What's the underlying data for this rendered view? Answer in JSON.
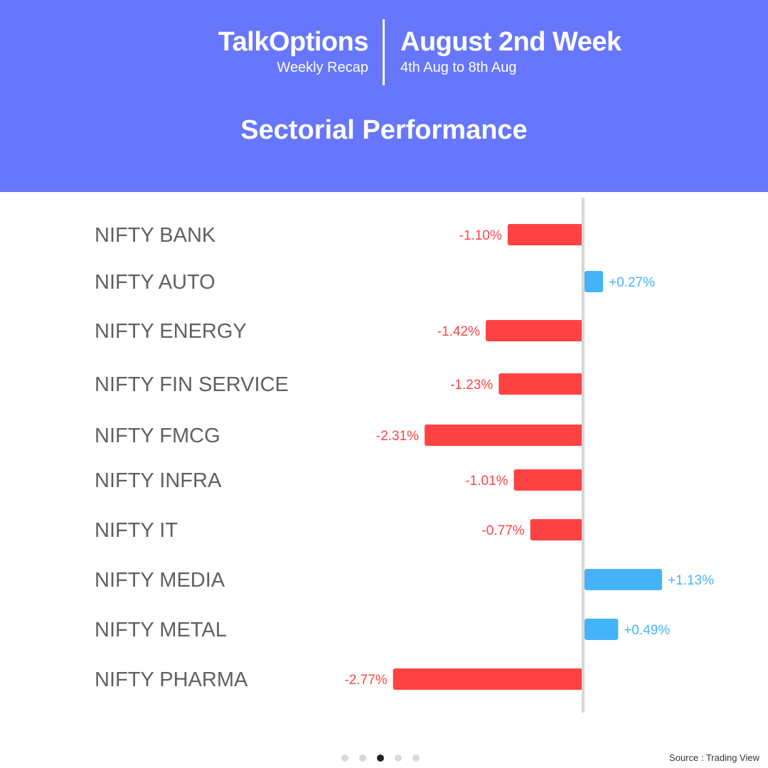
{
  "header": {
    "brand_name": "TalkOptions",
    "brand_sub": "Weekly Recap",
    "week_title": "August 2nd Week",
    "week_range": "4th Aug to 8th Aug",
    "section_title": "Sectorial Performance",
    "background_color": "#6677fb"
  },
  "chart_data": {
    "type": "bar",
    "orientation": "horizontal",
    "categories": [
      "NIFTY BANK",
      "NIFTY AUTO",
      "NIFTY ENERGY",
      "NIFTY FIN SERVICE",
      "NIFTY FMCG",
      "NIFTY INFRA",
      "NIFTY IT",
      "NIFTY MEDIA",
      "NIFTY METAL",
      "NIFTY PHARMA"
    ],
    "values": [
      -1.1,
      0.27,
      -1.42,
      -1.23,
      -2.31,
      -1.01,
      -0.77,
      1.13,
      0.49,
      -2.77
    ],
    "value_labels": [
      "-1.10%",
      "+0.27%",
      "-1.42%",
      "-1.23%",
      "-2.31%",
      "-1.01%",
      "-0.77%",
      "+1.13%",
      "+0.49%",
      "-2.77%"
    ],
    "positive_color": "#45b3fa",
    "negative_color": "#ff4343",
    "grid": false,
    "legend": "none"
  },
  "pagination": {
    "count": 5,
    "active_index": 2
  },
  "source": "Source : Trading View"
}
